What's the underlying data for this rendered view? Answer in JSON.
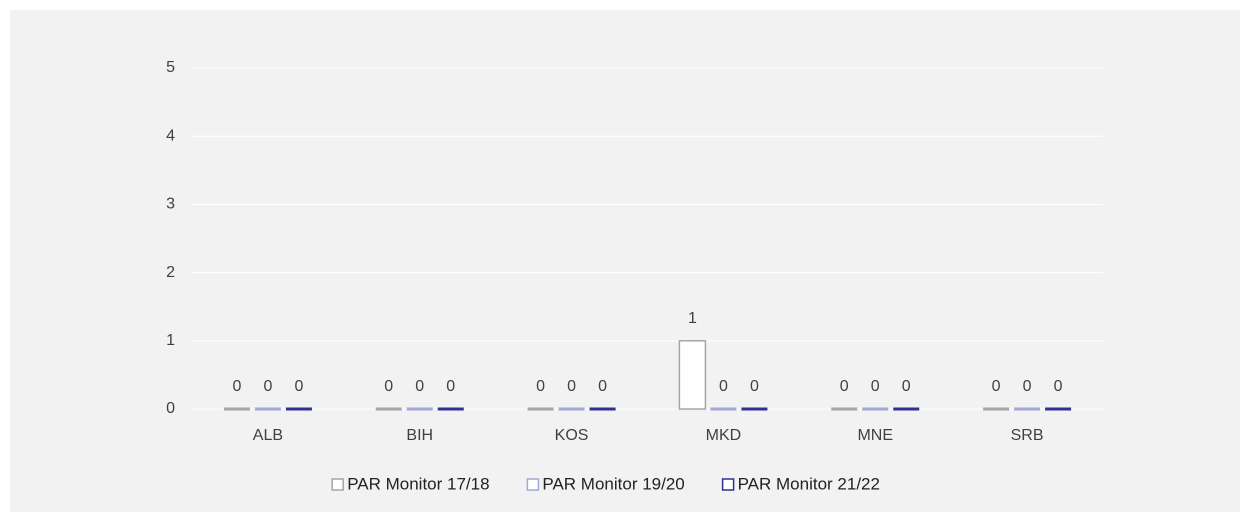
{
  "chart_data": {
    "type": "bar",
    "categories": [
      "ALB",
      "BIH",
      "KOS",
      "MKD",
      "MNE",
      "SRB"
    ],
    "series": [
      {
        "name": "PAR Monitor 17/18",
        "color": "#a6a6a6",
        "values": [
          0,
          0,
          0,
          1,
          0,
          0
        ]
      },
      {
        "name": "PAR Monitor 19/20",
        "color": "#a3a6d8",
        "values": [
          0,
          0,
          0,
          0,
          0,
          0
        ]
      },
      {
        "name": "PAR Monitor 21/22",
        "color": "#2e3192",
        "values": [
          0,
          0,
          0,
          0,
          0,
          0
        ]
      }
    ],
    "ylim": [
      0,
      5
    ],
    "yticks": [
      0,
      1,
      2,
      3,
      4,
      5
    ],
    "grid": true,
    "legend": "bottom"
  }
}
